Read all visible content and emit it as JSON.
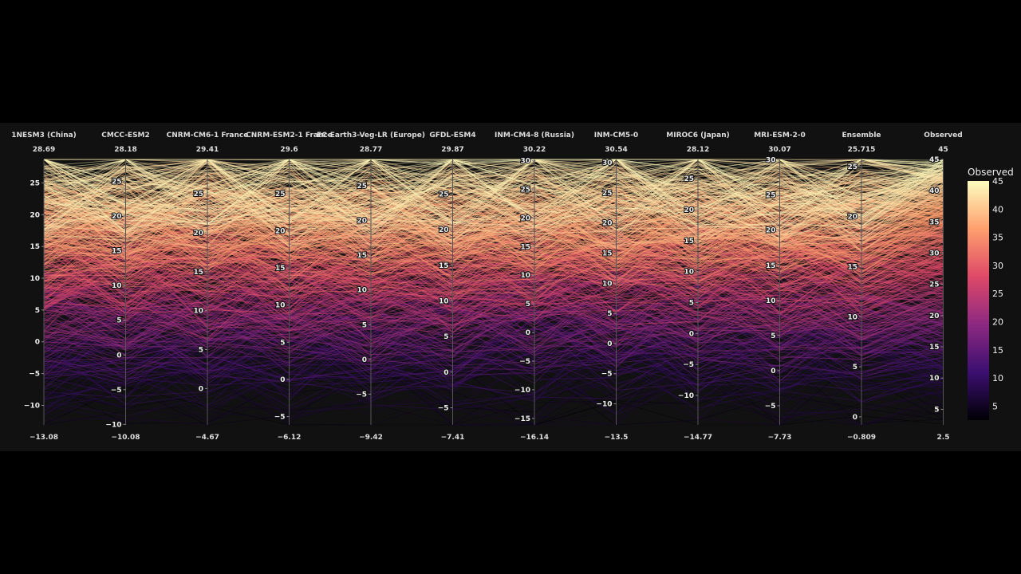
{
  "chart_data": {
    "type": "parallel_coordinates",
    "dimensions": [
      {
        "label": "1NESM3 (China)",
        "range": [
          -13.08,
          28.69
        ]
      },
      {
        "label": "CMCC-ESM2",
        "range": [
          -10.08,
          28.18
        ]
      },
      {
        "label": "CNRM-CM6-1 France",
        "range": [
          -4.67,
          29.41
        ]
      },
      {
        "label": "CNRM-ESM2-1 France",
        "range": [
          -6.12,
          29.6
        ]
      },
      {
        "label": "EC-Earth3-Veg-LR (Europe)",
        "range": [
          -9.42,
          28.77
        ]
      },
      {
        "label": "GFDL-ESM4",
        "range": [
          -7.41,
          29.87
        ]
      },
      {
        "label": "INM-CM4-8 (Russia)",
        "range": [
          -16.14,
          30.22
        ]
      },
      {
        "label": "INM-CM5-0",
        "range": [
          -13.5,
          30.54
        ]
      },
      {
        "label": "MIROC6 (Japan)",
        "range": [
          -14.77,
          28.12
        ]
      },
      {
        "label": "MRI-ESM-2-0",
        "range": [
          -7.73,
          30.07
        ]
      },
      {
        "label": "Ensemble",
        "range": [
          -0.809,
          25.715
        ]
      },
      {
        "label": "Observed",
        "range": [
          2.5,
          45
        ]
      }
    ],
    "range_labels": {
      "max": [
        "28.69",
        "28.18",
        "29.41",
        "29.6",
        "28.77",
        "29.87",
        "30.22",
        "30.54",
        "28.12",
        "30.07",
        "25.715",
        "45"
      ],
      "min": [
        "−13.08",
        "−10.08",
        "−4.67",
        "−6.12",
        "−9.42",
        "−7.41",
        "−16.14",
        "−13.5",
        "−14.77",
        "−7.73",
        "−0.809",
        "2.5"
      ]
    },
    "tick_step": 5,
    "color_by": "Observed",
    "colorbar": {
      "title": "Observed",
      "range": [
        2.5,
        45
      ],
      "ticks": [
        5,
        10,
        15,
        20,
        25,
        30,
        35,
        40,
        45
      ],
      "colorscale": "magma"
    },
    "colorscale_stops": [
      "#000004",
      "#3b0f70",
      "#8c2981",
      "#de4968",
      "#fe9f6d",
      "#fcfdbf"
    ],
    "background": "#111111"
  }
}
